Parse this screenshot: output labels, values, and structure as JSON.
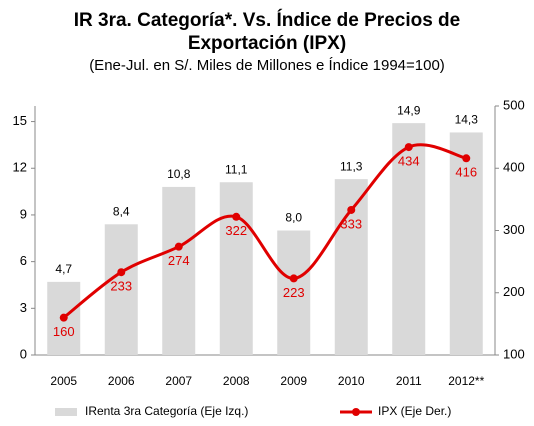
{
  "chart_data": {
    "type": "bar_line",
    "title": [
      "IR 3ra. Categoría*. Vs. Índice de Precios de",
      "Exportación (IPX)"
    ],
    "subtitle": "(Ene-Jul. en S/. Miles de Millones e Índice 1994=100)",
    "categories": [
      "2005",
      "2006",
      "2007",
      "2008",
      "2009",
      "2010",
      "2011",
      "2012**"
    ],
    "series": [
      {
        "name": "IRenta 3ra Categoría (Eje Izq.)",
        "color": "#d9d9d9",
        "type": "bar",
        "values": [
          4.7,
          8.4,
          10.8,
          11.1,
          8.0,
          11.3,
          14.9,
          14.3
        ],
        "value_labels": [
          "4,7",
          "8,4",
          "10,8",
          "11,1",
          "8,0",
          "11,3",
          "14,9",
          "14,3"
        ]
      },
      {
        "name": "IPX (Eje Der.)",
        "color": "#e00000",
        "type": "line",
        "axis": "y2",
        "values": [
          160,
          233,
          274,
          322,
          223,
          333,
          434,
          416
        ]
      }
    ],
    "ylim": [
      0,
      16
    ],
    "yticks": [
      0,
      3,
      6,
      9,
      12,
      15
    ],
    "y2lim": [
      100,
      500
    ],
    "y2ticks": [
      100,
      200,
      300,
      400,
      500
    ],
    "legend": "bottom"
  }
}
